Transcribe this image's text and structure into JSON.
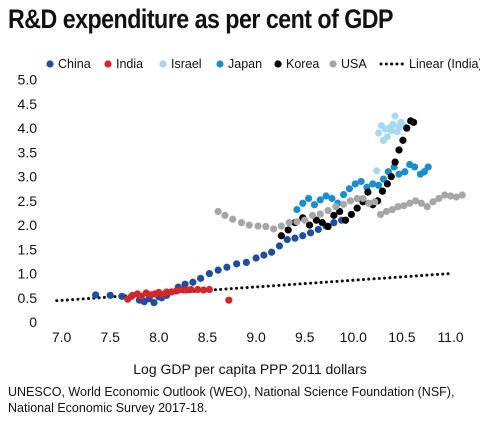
{
  "title": "R&D expenditure as per cent of GDP",
  "source": "UNESCO, World Economic Outlook (WEO), National Science Foundation (NSF), National Economic Survey 2017-18.",
  "chart_data": {
    "type": "scatter",
    "title": "R&D expenditure as per cent of GDP",
    "xlabel": "Log GDP per capita PPP 2011 dollars",
    "ylabel": "",
    "xlim": [
      6.85,
      11.2
    ],
    "ylim": [
      0,
      5.2
    ],
    "x_ticks": [
      7.0,
      7.5,
      8.0,
      8.5,
      9.0,
      9.5,
      10.0,
      10.5,
      11.0
    ],
    "x_tick_labels": [
      "7.0",
      "7.5",
      "8.0",
      "8.5",
      "9.0",
      "9.5",
      "10.0",
      "10.5",
      "11.0"
    ],
    "y_ticks": [
      0,
      0.5,
      1.0,
      1.5,
      2.0,
      2.5,
      3.0,
      3.5,
      4.0,
      4.5,
      5.0
    ],
    "y_tick_labels": [
      "0",
      "0.5",
      "1.0",
      "1.5",
      "2.0",
      "2.5",
      "3.0",
      "3.5",
      "4.0",
      "4.5",
      "5.0"
    ],
    "grid": false,
    "legend_position": "top",
    "series": [
      {
        "name": "China",
        "color": "#1f4e9c",
        "points": [
          [
            7.35,
            0.56
          ],
          [
            7.5,
            0.55
          ],
          [
            7.62,
            0.53
          ],
          [
            7.72,
            0.53
          ],
          [
            7.8,
            0.45
          ],
          [
            7.85,
            0.42
          ],
          [
            7.9,
            0.48
          ],
          [
            7.95,
            0.4
          ],
          [
            8.0,
            0.52
          ],
          [
            8.03,
            0.5
          ],
          [
            8.08,
            0.55
          ],
          [
            8.13,
            0.62
          ],
          [
            8.2,
            0.72
          ],
          [
            8.27,
            0.78
          ],
          [
            8.35,
            0.82
          ],
          [
            8.43,
            0.9
          ],
          [
            8.52,
            1.0
          ],
          [
            8.61,
            1.07
          ],
          [
            8.7,
            1.13
          ],
          [
            8.8,
            1.2
          ],
          [
            8.9,
            1.23
          ],
          [
            9.0,
            1.32
          ],
          [
            9.08,
            1.38
          ],
          [
            9.16,
            1.44
          ],
          [
            9.24,
            1.57
          ],
          [
            9.32,
            1.7
          ],
          [
            9.4,
            1.73
          ],
          [
            9.48,
            1.78
          ],
          [
            9.56,
            1.84
          ],
          [
            9.64,
            1.91
          ],
          [
            9.72,
            1.98
          ],
          [
            9.8,
            2.05
          ],
          [
            9.88,
            2.1
          ]
        ]
      },
      {
        "name": "India",
        "color": "#d7262a",
        "points": [
          [
            7.68,
            0.47
          ],
          [
            7.73,
            0.55
          ],
          [
            7.78,
            0.58
          ],
          [
            7.82,
            0.53
          ],
          [
            7.87,
            0.6
          ],
          [
            7.92,
            0.56
          ],
          [
            7.96,
            0.58
          ],
          [
            8.0,
            0.61
          ],
          [
            8.04,
            0.57
          ],
          [
            8.08,
            0.62
          ],
          [
            8.13,
            0.62
          ],
          [
            8.18,
            0.64
          ],
          [
            8.23,
            0.67
          ],
          [
            8.28,
            0.66
          ],
          [
            8.33,
            0.67
          ],
          [
            8.4,
            0.67
          ],
          [
            8.46,
            0.66
          ],
          [
            8.52,
            0.67
          ],
          [
            8.72,
            0.45
          ]
        ]
      },
      {
        "name": "Israel",
        "color": "#a8d8f0",
        "points": [
          [
            10.26,
            3.9
          ],
          [
            10.29,
            4.05
          ],
          [
            10.31,
            3.75
          ],
          [
            10.33,
            3.98
          ],
          [
            10.35,
            3.82
          ],
          [
            10.37,
            4.0
          ],
          [
            10.39,
            3.95
          ],
          [
            10.41,
            4.08
          ],
          [
            10.43,
            4.25
          ],
          [
            10.45,
            3.93
          ],
          [
            10.47,
            4.02
          ],
          [
            10.49,
            4.12
          ],
          [
            10.52,
            4.05
          ],
          [
            10.24,
            3.12
          ]
        ]
      },
      {
        "name": "Japan",
        "color": "#1a8fc9",
        "points": [
          [
            9.42,
            2.32
          ],
          [
            9.48,
            2.45
          ],
          [
            9.54,
            2.55
          ],
          [
            9.6,
            2.42
          ],
          [
            9.66,
            2.52
          ],
          [
            9.72,
            2.6
          ],
          [
            9.78,
            2.55
          ],
          [
            9.84,
            2.45
          ],
          [
            9.9,
            2.63
          ],
          [
            9.96,
            2.75
          ],
          [
            10.02,
            2.85
          ],
          [
            10.08,
            2.9
          ],
          [
            10.14,
            2.78
          ],
          [
            10.2,
            2.85
          ],
          [
            10.26,
            2.82
          ],
          [
            10.31,
            2.95
          ],
          [
            10.36,
            3.1
          ],
          [
            10.42,
            3.2
          ],
          [
            10.47,
            3.05
          ],
          [
            10.53,
            3.1
          ],
          [
            10.58,
            3.25
          ],
          [
            10.63,
            3.2
          ],
          [
            10.69,
            3.05
          ],
          [
            10.73,
            3.1
          ],
          [
            10.77,
            3.2
          ]
        ]
      },
      {
        "name": "Korea",
        "color": "#000000",
        "points": [
          [
            9.26,
            1.78
          ],
          [
            9.33,
            1.9
          ],
          [
            9.4,
            2.05
          ],
          [
            9.48,
            2.15
          ],
          [
            9.55,
            2.0
          ],
          [
            9.62,
            2.1
          ],
          [
            9.68,
            2.05
          ],
          [
            9.74,
            1.97
          ],
          [
            9.8,
            2.2
          ],
          [
            9.86,
            2.28
          ],
          [
            9.92,
            2.1
          ],
          [
            9.98,
            2.22
          ],
          [
            10.04,
            2.35
          ],
          [
            10.1,
            2.48
          ],
          [
            10.15,
            2.68
          ],
          [
            10.2,
            2.42
          ],
          [
            10.25,
            2.5
          ],
          [
            10.3,
            2.7
          ],
          [
            10.35,
            2.85
          ],
          [
            10.39,
            3.0
          ],
          [
            10.43,
            3.3
          ],
          [
            10.47,
            3.55
          ],
          [
            10.51,
            3.75
          ],
          [
            10.55,
            4.0
          ],
          [
            10.59,
            4.15
          ],
          [
            10.62,
            4.12
          ]
        ]
      },
      {
        "name": "USA",
        "color": "#a6a6a6",
        "points": [
          [
            8.61,
            2.28
          ],
          [
            8.68,
            2.2
          ],
          [
            8.76,
            2.12
          ],
          [
            8.85,
            2.05
          ],
          [
            8.93,
            2.0
          ],
          [
            9.02,
            1.98
          ],
          [
            9.1,
            1.97
          ],
          [
            9.18,
            1.92
          ],
          [
            9.26,
            1.98
          ],
          [
            9.34,
            2.05
          ],
          [
            9.42,
            2.07
          ],
          [
            9.5,
            2.1
          ],
          [
            9.58,
            2.2
          ],
          [
            9.66,
            2.23
          ],
          [
            9.74,
            2.3
          ],
          [
            9.82,
            2.38
          ],
          [
            9.9,
            2.43
          ],
          [
            9.97,
            2.5
          ],
          [
            10.04,
            2.55
          ],
          [
            10.1,
            2.55
          ],
          [
            10.16,
            2.45
          ],
          [
            10.22,
            2.48
          ],
          [
            10.28,
            2.22
          ],
          [
            10.34,
            2.28
          ],
          [
            10.4,
            2.32
          ],
          [
            10.46,
            2.38
          ],
          [
            10.52,
            2.4
          ],
          [
            10.58,
            2.45
          ],
          [
            10.64,
            2.5
          ],
          [
            10.7,
            2.45
          ],
          [
            10.76,
            2.38
          ],
          [
            10.82,
            2.48
          ],
          [
            10.88,
            2.55
          ],
          [
            10.94,
            2.62
          ],
          [
            11.0,
            2.6
          ],
          [
            11.06,
            2.58
          ],
          [
            11.12,
            2.62
          ]
        ]
      }
    ],
    "trendline": {
      "name": "Linear (India)",
      "color": "#111111",
      "style": "dotted",
      "x": [
        6.95,
        11.0
      ],
      "y": [
        0.44,
        1.0
      ]
    }
  }
}
